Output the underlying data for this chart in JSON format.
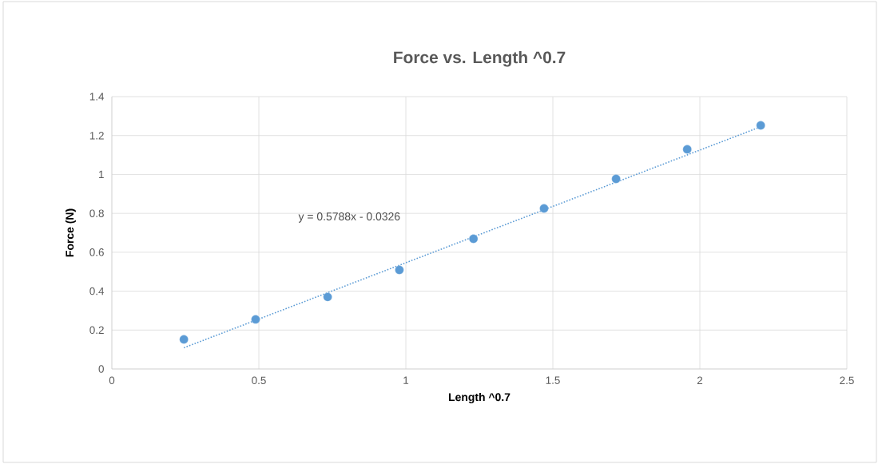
{
  "chart_data": {
    "type": "scatter",
    "title": "Force vs. Length ^0.7",
    "xlabel": "Length ^0.7",
    "ylabel": "Force (N)",
    "series": [
      {
        "color": "#5b9bd5",
        "marker": "circle",
        "x": [
          0.245,
          0.489,
          0.734,
          0.978,
          1.23,
          1.47,
          1.715,
          1.957,
          2.207
        ],
        "values": [
          0.152,
          0.255,
          0.37,
          0.509,
          0.669,
          0.825,
          0.977,
          1.129,
          1.252
        ]
      },
      {
        "type": "line",
        "color": "#5b9bd5",
        "marker": "none",
        "line_style": "dotted",
        "x": [
          0.245,
          2.207
        ],
        "values": [
          0.109,
          1.245
        ]
      }
    ],
    "annotations": [
      "y = 0.5788x - 0.0326"
    ],
    "xlim": [
      0,
      2.5
    ],
    "ylim": [
      0,
      1.4
    ],
    "xticks": [
      0,
      0.5,
      1,
      1.5,
      2,
      2.5
    ],
    "yticks": [
      0,
      0.2,
      0.4,
      0.6,
      0.8,
      1,
      1.2,
      1.4
    ],
    "grid": true
  }
}
